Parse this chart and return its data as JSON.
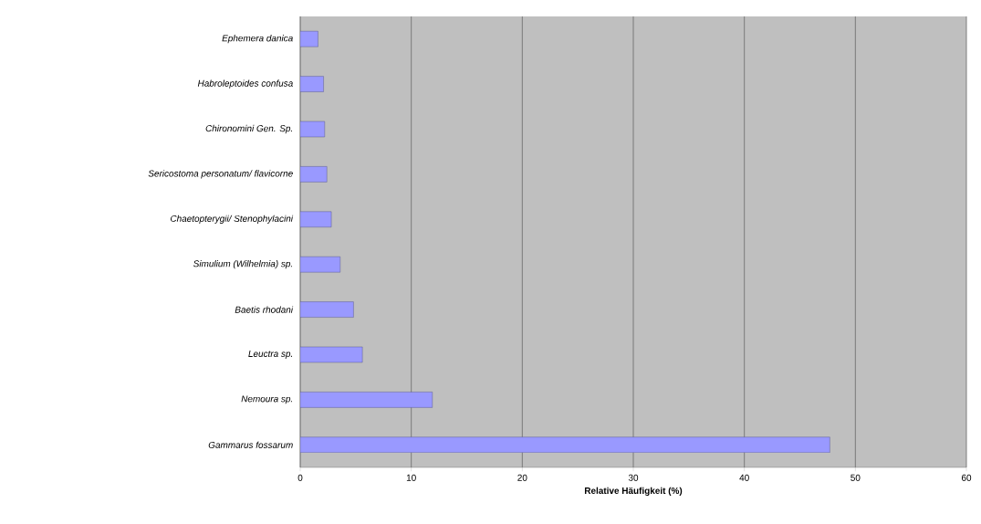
{
  "chart_data": {
    "type": "bar",
    "orientation": "horizontal",
    "xlabel": "Relative Häufigkeit (%)",
    "categories": [
      "*Ephemera danica*",
      "*Habroleptoides confusa*",
      "*Chironomini Gen. Sp.*",
      "*Sericostoma personatum/ flavicorne*",
      "*Chaetopterygii/ Stenophylacini*",
      "*Simulium (Wilhelmia) sp.*",
      "*Baetis rhodani*",
      "*Leuctra sp.*",
      "*Nemoura sp.*",
      "*Gammarus fossarum*"
    ],
    "values": [
      1.6,
      2.1,
      2.2,
      2.4,
      2.8,
      3.6,
      4.8,
      5.6,
      11.9,
      47.7
    ],
    "color": "#9999ff",
    "xlim": [
      0,
      60
    ],
    "xticks": [
      0,
      10,
      20,
      30,
      40,
      50,
      60
    ],
    "grid": "x"
  }
}
